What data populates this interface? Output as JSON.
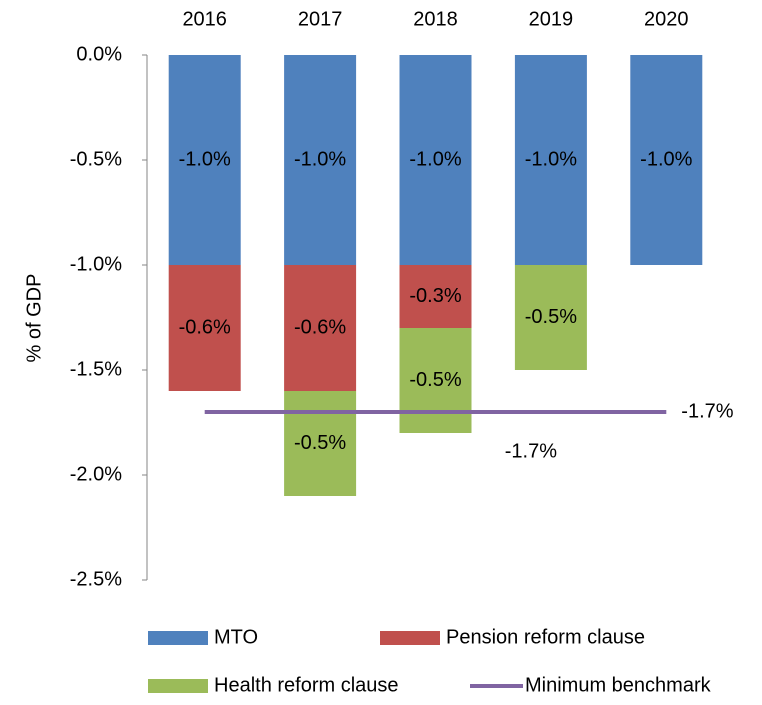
{
  "chart_data": {
    "type": "bar",
    "stacked": true,
    "y_label": "% of GDP",
    "categories": [
      "2016",
      "2017",
      "2018",
      "2019",
      "2020"
    ],
    "series": [
      {
        "name": "MTO",
        "color": "#4f81bd",
        "values": [
          -1.0,
          -1.0,
          -1.0,
          -1.0,
          -1.0
        ],
        "value_labels": [
          "-1.0%",
          "-1.0%",
          "-1.0%",
          "-1.0%",
          "-1.0%"
        ]
      },
      {
        "name": "Pension reform clause",
        "color": "#c0504d",
        "values": [
          -0.6,
          -0.6,
          -0.3,
          null,
          null
        ],
        "value_labels": [
          "-0.6%",
          "-0.6%",
          "-0.3%",
          null,
          null
        ]
      },
      {
        "name": "Health reform clause",
        "color": "#9bbb59",
        "values": [
          null,
          -0.5,
          -0.5,
          -0.5,
          null
        ],
        "value_labels": [
          null,
          "-0.5%",
          "-0.5%",
          "-0.5%",
          null
        ]
      },
      {
        "name": "Minimum benchmark",
        "type": "line",
        "color": "#8064a2",
        "values": [
          -1.7,
          -1.7,
          -1.7,
          -1.7,
          -1.7
        ],
        "value_labels": [
          null,
          null,
          null,
          "-1.7%",
          "-1.7%"
        ]
      }
    ],
    "ylim": [
      0,
      -2.5
    ],
    "yticks": [
      {
        "value": 0,
        "label": "0.0%"
      },
      {
        "value": -0.5,
        "label": "-0.5%"
      },
      {
        "value": -1.0,
        "label": "-1.0%"
      },
      {
        "value": -1.5,
        "label": "-1.5%"
      },
      {
        "value": -2.0,
        "label": "-2.0%"
      },
      {
        "value": -2.5,
        "label": "-2.5%"
      }
    ],
    "grid": false,
    "legend": "bottom"
  }
}
